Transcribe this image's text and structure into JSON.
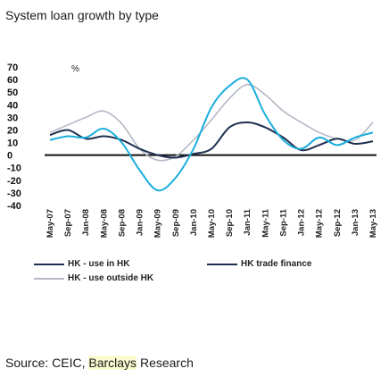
{
  "title": "System loan growth by type",
  "source_prefix": "Source: CEIC, ",
  "source_highlight": "Barclays",
  "source_suffix": " Research",
  "chart_data": {
    "type": "line",
    "unit_label": "%",
    "ylim": [
      -40,
      70
    ],
    "yticks": [
      70,
      60,
      50,
      40,
      30,
      20,
      10,
      0,
      -10,
      -20,
      -30,
      -40
    ],
    "x": [
      "May-07",
      "Sep-07",
      "Jan-08",
      "May-08",
      "Sep-08",
      "Jan-09",
      "May-09",
      "Sep-09",
      "Jan-10",
      "May-10",
      "Sep-10",
      "Jan-11",
      "May-11",
      "Sep-11",
      "Jan-12",
      "May-12",
      "Sep-12",
      "Jan-13",
      "May-13"
    ],
    "grid": false,
    "legend_position": "bottom",
    "series": [
      {
        "name": "HK - use in HK",
        "color": "#1e2f4f",
        "width": 2,
        "values": [
          16,
          20,
          13,
          15,
          12,
          5,
          0,
          -2,
          1,
          5,
          22,
          26,
          22,
          14,
          4,
          8,
          13,
          9,
          11
        ]
      },
      {
        "name": "HK trade finance",
        "color": "#19aedc",
        "width": 2,
        "values": [
          12,
          15,
          14,
          21,
          10,
          -12,
          -28,
          -18,
          5,
          38,
          55,
          60,
          32,
          12,
          5,
          14,
          8,
          14,
          18
        ]
      },
      {
        "name": "HK - use outside HK",
        "color": "#b3b9c6",
        "width": 1.6,
        "values": [
          18,
          24,
          30,
          35,
          25,
          5,
          -4,
          -1,
          12,
          28,
          45,
          56,
          48,
          35,
          26,
          18,
          13,
          12,
          26
        ]
      }
    ]
  }
}
